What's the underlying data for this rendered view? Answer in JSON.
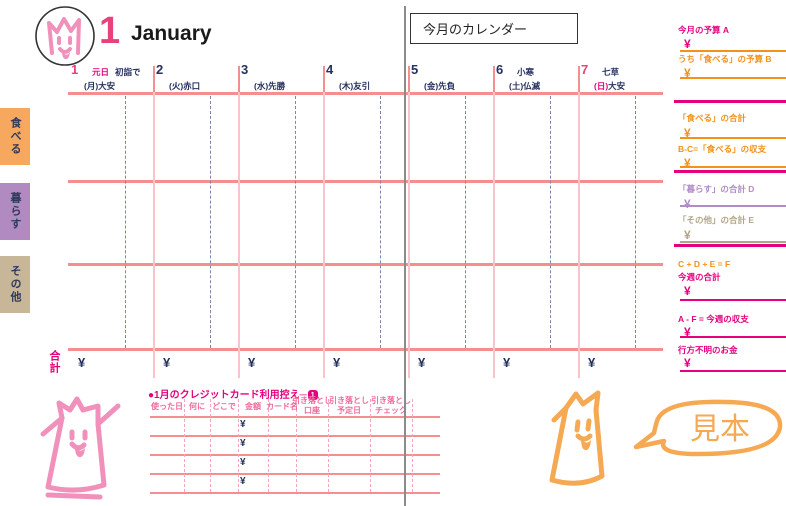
{
  "palette": {
    "magenta": "#e6007e",
    "pink_strong": "#e8417d",
    "header_pink": "#ee6a9c",
    "orange": "#f39119",
    "purple": "#b08cc8",
    "tan": "#b3a486",
    "navy": "#25315e",
    "salmon": "#f58e8e",
    "light_pink": "#f8c3cb",
    "dash_blue": "#7c87a6",
    "fold_gray": "#8b8b8b",
    "tab_orange": "#f6a95e",
    "tab_purple": "#b28ac2",
    "tab_tan": "#c7b697",
    "doodle_pink": "#f190bb",
    "doodle_orange": "#f5a952",
    "ink": "#1a1a1a"
  },
  "header": {
    "month_number": "1",
    "month_name": "January",
    "calendar_box_label": "今月のカレンダー"
  },
  "category_tabs": [
    {
      "label": "食べる"
    },
    {
      "label": "暮らす"
    },
    {
      "label": "その他"
    }
  ],
  "days": [
    {
      "num": "1",
      "num_pink": true,
      "special": "元日",
      "special_pink": true,
      "note": "初詣で",
      "weekday": "(月)",
      "weekday_pink": false,
      "rokuyo": "大安"
    },
    {
      "num": "2",
      "num_pink": false,
      "special": "",
      "special_pink": false,
      "note": "",
      "weekday": "(火)",
      "weekday_pink": false,
      "rokuyo": "赤口"
    },
    {
      "num": "3",
      "num_pink": false,
      "special": "",
      "special_pink": false,
      "note": "",
      "weekday": "(水)",
      "weekday_pink": false,
      "rokuyo": "先勝"
    },
    {
      "num": "4",
      "num_pink": false,
      "special": "",
      "special_pink": false,
      "note": "",
      "weekday": "(木)",
      "weekday_pink": false,
      "rokuyo": "友引"
    },
    {
      "num": "5",
      "num_pink": false,
      "special": "",
      "special_pink": false,
      "note": "",
      "weekday": "(金)",
      "weekday_pink": false,
      "rokuyo": "先負"
    },
    {
      "num": "6",
      "num_pink": false,
      "special": "小寒",
      "special_pink": false,
      "note": "",
      "weekday": "(土)",
      "weekday_pink": false,
      "rokuyo": "仏滅"
    },
    {
      "num": "7",
      "num_pink": true,
      "special": "七草",
      "special_pink": false,
      "note": "",
      "weekday": "(日)",
      "weekday_pink": true,
      "rokuyo": "大安"
    }
  ],
  "total_row": {
    "label": "合計",
    "currency": "¥"
  },
  "credit_table": {
    "bullet": "●",
    "title": "1月のクレジットカード利用控え─",
    "badge": "1",
    "currency": "¥",
    "data_rows": 4,
    "columns": [
      {
        "line1": "使った日",
        "line2": ""
      },
      {
        "line1": "何に",
        "line2": ""
      },
      {
        "line1": "どこで",
        "line2": ""
      },
      {
        "line1": "金額",
        "line2": ""
      },
      {
        "line1": "カード名",
        "line2": ""
      },
      {
        "line1": "引き落とし",
        "line2": "口座"
      },
      {
        "line1": "引き落とし",
        "line2": "予定日"
      },
      {
        "line1": "引き落とし",
        "line2": "チェック"
      }
    ]
  },
  "sidebar": {
    "currency": "¥",
    "items": [
      {
        "label": "今月の予算 A",
        "color": "magenta",
        "line_color": "orange"
      },
      {
        "label": "うち「食べる」の予算 B",
        "color": "orange",
        "line_color": "orange"
      },
      {
        "label": "「食べる」の合計",
        "color": "orange",
        "line_color": "orange"
      },
      {
        "label": "B-C=「食べる」の収支",
        "color": "orange",
        "line_color": "orange"
      },
      {
        "label": "「暮らす」の合計 D",
        "color": "purple",
        "line_color": "purple"
      },
      {
        "label": "「その他」の合計 E",
        "color": "tan",
        "line_color": "tan"
      },
      {
        "formula": "C + D + E = F",
        "label": "今週の合計",
        "color": "magenta",
        "line_color": "magenta",
        "formula_color": "orange"
      },
      {
        "label": "A - F = 今週の収支",
        "color": "magenta",
        "line_color": "magenta"
      },
      {
        "label": "行方不明のお金",
        "color": "magenta",
        "line_color": "magenta"
      }
    ]
  },
  "stamp": {
    "label": "見本"
  }
}
